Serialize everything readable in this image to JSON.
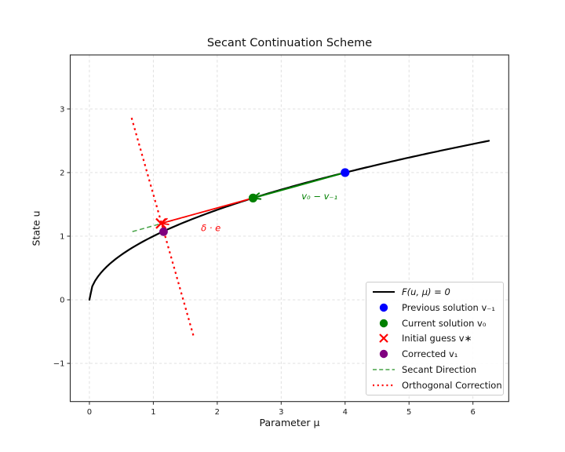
{
  "chart_data": {
    "type": "line",
    "title": "Secant Continuation Scheme",
    "xlabel": "Parameter μ",
    "ylabel": "State u",
    "xlim": [
      -0.3,
      6.56
    ],
    "ylim": [
      -1.6,
      3.85
    ],
    "grid": true,
    "legend_position": "lower right",
    "x_ticks": [
      0,
      1,
      2,
      3,
      4,
      5,
      6
    ],
    "x_tick_labels": [
      "0",
      "1",
      "2",
      "3",
      "4",
      "5",
      "6"
    ],
    "y_ticks": [
      -1,
      0,
      1,
      2,
      3
    ],
    "y_tick_labels": [
      "−1",
      "0",
      "1",
      "2",
      "3"
    ],
    "curve": {
      "name": "F(u, μ) = 0",
      "fn": "sqrt",
      "x_range": [
        0,
        6.25
      ],
      "color": "#000000",
      "width": 2.2,
      "points": [
        [
          0,
          0
        ],
        [
          0.25,
          0.5
        ],
        [
          1,
          1
        ],
        [
          2.25,
          1.5
        ],
        [
          4,
          2
        ],
        [
          5.0625,
          2.25
        ],
        [
          6.25,
          2.5
        ]
      ]
    },
    "points": [
      {
        "key": "previous-solution",
        "name": "Previous solution v₋₁",
        "x": 4.0,
        "y": 2.0,
        "marker": "circle",
        "color": "#0000ff",
        "size": 5.6
      },
      {
        "key": "current-solution",
        "name": "Current solution v₀",
        "x": 2.56,
        "y": 1.6,
        "marker": "circle",
        "color": "#008000",
        "size": 5.6
      },
      {
        "key": "initial-guess",
        "name": "Initial guess v∗",
        "x": 1.12,
        "y": 1.2,
        "marker": "x",
        "color": "#ff0000",
        "size": 6.2
      },
      {
        "key": "corrected",
        "name": "Corrected v₁",
        "x": 1.16,
        "y": 1.07,
        "marker": "circle",
        "color": "#800080",
        "size": 5.4
      }
    ],
    "segments": [
      {
        "key": "secant-step-arrow",
        "from": [
          4.0,
          2.0
        ],
        "to": [
          2.56,
          1.6
        ],
        "style": "solid",
        "color": "#008000",
        "width": 2.0,
        "arrow": true,
        "opacity": 1
      },
      {
        "key": "secant-direction",
        "from": [
          2.56,
          1.6
        ],
        "to": [
          0.63,
          1.06
        ],
        "style": "dashed",
        "color": "#008000",
        "width": 1.5,
        "arrow": false,
        "opacity": 0.72
      },
      {
        "key": "correction-step-arrow",
        "from": [
          2.56,
          1.6
        ],
        "to": [
          1.12,
          1.2
        ],
        "style": "solid",
        "color": "#ff0000",
        "width": 1.8,
        "arrow": true,
        "opacity": 1
      },
      {
        "key": "orthogonal-correction",
        "from": [
          0.66,
          2.86
        ],
        "to": [
          1.64,
          -0.61
        ],
        "style": "dotted",
        "color": "#ff0000",
        "width": 2.2,
        "arrow": false,
        "opacity": 1
      }
    ],
    "annotations": [
      {
        "text": "v₀ − v₋₁",
        "x": 3.6,
        "y": 1.63,
        "color": "#008000"
      },
      {
        "text": "δ · e",
        "x": 1.9,
        "y": 1.13,
        "color": "#ff0000"
      }
    ]
  },
  "legend": {
    "items": [
      {
        "label": "F(u, μ) = 0",
        "swatch": "line-solid",
        "color": "#000000",
        "italic": true
      },
      {
        "label": "Previous solution v₋₁",
        "swatch": "dot",
        "color": "#0000ff",
        "italic": false
      },
      {
        "label": "Current solution v₀",
        "swatch": "dot",
        "color": "#008000",
        "italic": false
      },
      {
        "label": "Initial guess v∗",
        "swatch": "x",
        "color": "#ff0000",
        "italic": false
      },
      {
        "label": "Corrected v₁",
        "swatch": "dot",
        "color": "#800080",
        "italic": false
      },
      {
        "label": "Secant Direction",
        "swatch": "line-dashed",
        "color": "#008000",
        "italic": false
      },
      {
        "label": "Orthogonal Correction",
        "swatch": "line-dotted",
        "color": "#ff0000",
        "italic": false
      }
    ]
  },
  "colors": {
    "grid": "#dcdcdc",
    "spine": "#262626",
    "tick_text": "#1a1a1a",
    "background": "#ffffff"
  }
}
